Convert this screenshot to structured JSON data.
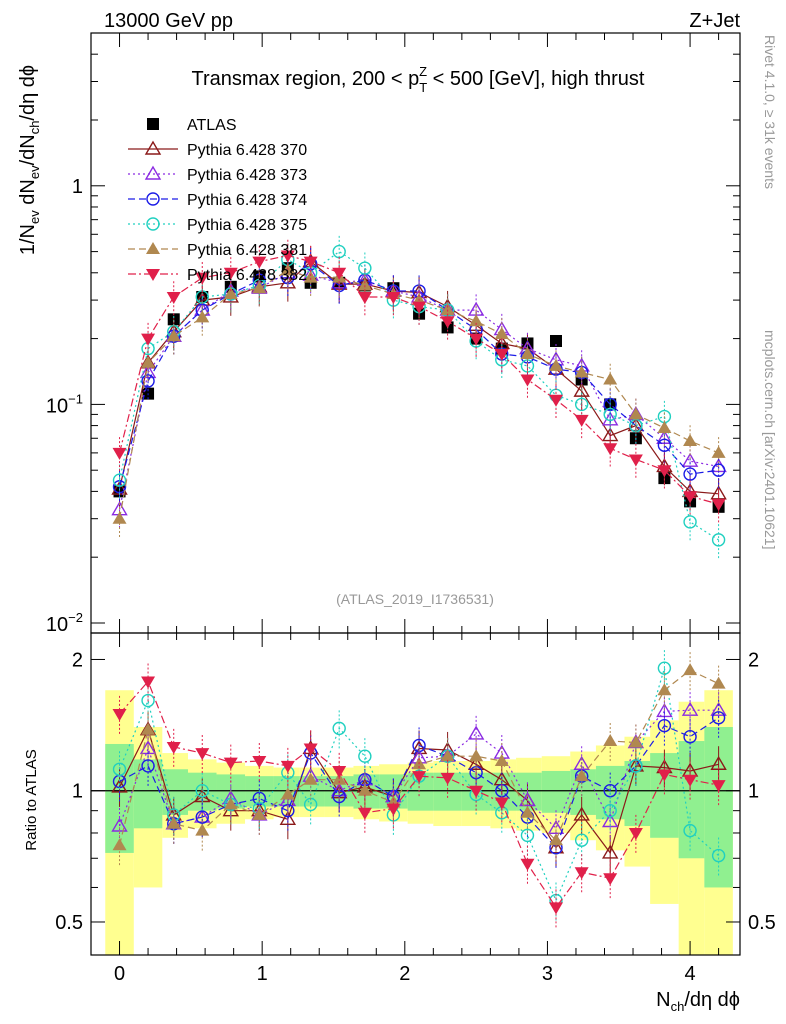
{
  "header": {
    "energy": "13000 GeV pp",
    "process": "Z+Jet"
  },
  "side_labels": {
    "rivet": "Rivet 4.1.0, ≥ 31k events",
    "mcplots": "mcplots.cern.ch [arXiv:2401.10621]"
  },
  "colors": {
    "ATLAS": "#000000",
    "Pythia 6.428 370": "#8b1a1a",
    "Pythia 6.428 373": "#8b2be2",
    "Pythia 6.428 374": "#1c1ce6",
    "Pythia 6.428 375": "#20d0c0",
    "Pythia 6.428 381": "#b08850",
    "Pythia 6.428 382": "#e0204a",
    "band_inner": "#90f090",
    "band_outer": "#ffff90"
  },
  "chart_data": [
    {
      "type": "scatter",
      "title": "Transmax region, 200 < p_T^Z < 500 [GeV], high thrust",
      "title_parts": {
        "pre": "Transmax region, 200 < p",
        "sub": "T",
        "sup": "Z",
        "post": " < 500 [GeV], high thrust"
      },
      "ylabel": "1/N_ev dN_ev/dN_ch/dη dϕ",
      "xlabel": "N_ch/dη dϕ",
      "yscale": "log",
      "ylim": [
        0.009,
        5
      ],
      "xlim": [
        -0.2,
        4.35
      ],
      "y_ticks": [
        "10⁻²",
        "10⁻¹",
        "1"
      ],
      "watermark": "(ATLAS_2019_I1736531)",
      "x": [
        0.0,
        0.2,
        0.38,
        0.58,
        0.78,
        0.98,
        1.18,
        1.34,
        1.54,
        1.72,
        1.92,
        2.1,
        2.3,
        2.5,
        2.68,
        2.86,
        3.06,
        3.24,
        3.44,
        3.62,
        3.82,
        4.0,
        4.2
      ],
      "series": [
        {
          "name": "ATLAS",
          "marker": "square",
          "line": "none",
          "values": [
            0.04,
            0.112,
            0.245,
            0.31,
            0.345,
            0.385,
            0.42,
            0.36,
            0.36,
            0.35,
            0.34,
            0.26,
            0.225,
            0.2,
            0.18,
            0.19,
            0.195,
            0.13,
            0.1,
            0.07,
            0.046,
            0.036,
            0.034
          ]
        },
        {
          "name": "Pythia 6.428 370",
          "marker": "triangle-up-open",
          "line": "solid",
          "values": [
            0.041,
            0.155,
            0.215,
            0.3,
            0.31,
            0.345,
            0.36,
            0.45,
            0.355,
            0.355,
            0.33,
            0.325,
            0.28,
            0.23,
            0.19,
            0.18,
            0.145,
            0.115,
            0.072,
            0.08,
            0.052,
            0.04,
            0.039
          ]
        },
        {
          "name": "Pythia 6.428 373",
          "marker": "triangle-up-open",
          "line": "dotted",
          "values": [
            0.033,
            0.14,
            0.205,
            0.27,
            0.33,
            0.34,
            0.4,
            0.39,
            0.36,
            0.37,
            0.33,
            0.31,
            0.27,
            0.27,
            0.22,
            0.18,
            0.16,
            0.15,
            0.085,
            0.09,
            0.07,
            0.055,
            0.052
          ]
        },
        {
          "name": "Pythia 6.428 374",
          "marker": "circle-open",
          "line": "dashed",
          "values": [
            0.042,
            0.128,
            0.205,
            0.27,
            0.32,
            0.37,
            0.38,
            0.44,
            0.35,
            0.37,
            0.33,
            0.33,
            0.27,
            0.22,
            0.17,
            0.165,
            0.145,
            0.14,
            0.1,
            0.08,
            0.065,
            0.048,
            0.05
          ]
        },
        {
          "name": "Pythia 6.428 375",
          "marker": "circle-open",
          "line": "dotted",
          "values": [
            0.045,
            0.18,
            0.215,
            0.31,
            0.32,
            0.35,
            0.46,
            0.4,
            0.5,
            0.42,
            0.3,
            0.28,
            0.27,
            0.195,
            0.16,
            0.15,
            0.11,
            0.1,
            0.09,
            0.08,
            0.088,
            0.029,
            0.024
          ]
        },
        {
          "name": "Pythia 6.428 381",
          "marker": "triangle-up-filled",
          "line": "dashed",
          "values": [
            0.03,
            0.155,
            0.205,
            0.25,
            0.32,
            0.34,
            0.41,
            0.38,
            0.38,
            0.35,
            0.32,
            0.3,
            0.27,
            0.24,
            0.21,
            0.17,
            0.15,
            0.14,
            0.13,
            0.09,
            0.078,
            0.068,
            0.06
          ]
        },
        {
          "name": "Pythia 6.428 382",
          "marker": "triangle-down-filled",
          "line": "dashdot",
          "values": [
            0.06,
            0.2,
            0.31,
            0.38,
            0.4,
            0.45,
            0.48,
            0.45,
            0.4,
            0.31,
            0.31,
            0.28,
            0.24,
            0.2,
            0.17,
            0.13,
            0.105,
            0.085,
            0.063,
            0.056,
            0.05,
            0.038,
            0.035
          ]
        }
      ]
    },
    {
      "type": "scatter",
      "title": "",
      "ylabel": "Ratio to ATLAS",
      "xlabel": "N_ch/dη dϕ",
      "ylim": [
        0.42,
        2.3
      ],
      "yscale": "log",
      "xlim": [
        -0.2,
        4.35
      ],
      "y_ticks": [
        "0.5",
        "1",
        "2"
      ],
      "x_ticks": [
        "0",
        "1",
        "2",
        "3",
        "4"
      ],
      "bands": {
        "x_edges": [
          -0.1,
          0.1,
          0.3,
          0.48,
          0.68,
          0.88,
          1.08,
          1.26,
          1.44,
          1.64,
          1.82,
          2.02,
          2.2,
          2.4,
          2.6,
          2.78,
          2.96,
          3.16,
          3.34,
          3.54,
          3.72,
          3.92,
          4.1,
          4.3
        ],
        "inner": [
          0.28,
          0.18,
          0.12,
          0.1,
          0.09,
          0.08,
          0.08,
          0.08,
          0.08,
          0.09,
          0.09,
          0.1,
          0.1,
          0.1,
          0.1,
          0.1,
          0.11,
          0.12,
          0.14,
          0.17,
          0.22,
          0.3,
          0.4
        ],
        "outer": [
          0.7,
          0.4,
          0.22,
          0.18,
          0.16,
          0.14,
          0.13,
          0.13,
          0.13,
          0.14,
          0.15,
          0.16,
          0.17,
          0.17,
          0.18,
          0.19,
          0.2,
          0.23,
          0.27,
          0.33,
          0.45,
          0.6,
          0.7
        ]
      },
      "series": [
        {
          "name": "Pythia 6.428 370",
          "values": [
            1.02,
            1.38,
            0.88,
            0.97,
            0.9,
            0.9,
            0.86,
            1.25,
            0.99,
            1.02,
            0.97,
            1.25,
            1.24,
            1.15,
            1.06,
            0.95,
            0.74,
            0.88,
            0.72,
            1.14,
            1.13,
            1.11,
            1.15
          ]
        },
        {
          "name": "Pythia 6.428 373",
          "values": [
            0.83,
            1.25,
            0.84,
            0.87,
            0.96,
            0.88,
            0.95,
            1.08,
            1.0,
            1.06,
            0.97,
            1.19,
            1.2,
            1.35,
            1.22,
            0.95,
            0.82,
            1.15,
            0.85,
            1.29,
            1.52,
            1.53,
            1.53
          ]
        },
        {
          "name": "Pythia 6.428 374",
          "values": [
            1.05,
            1.14,
            0.84,
            0.87,
            0.93,
            0.96,
            0.9,
            1.22,
            0.97,
            1.06,
            0.97,
            1.27,
            1.2,
            1.1,
            1.0,
            0.87,
            0.74,
            1.08,
            1.0,
            1.14,
            1.41,
            1.33,
            1.47
          ]
        },
        {
          "name": "Pythia 6.428 375",
          "values": [
            1.12,
            1.61,
            0.88,
            1.0,
            0.93,
            0.91,
            1.1,
            0.93,
            1.39,
            1.2,
            0.88,
            1.08,
            1.2,
            0.98,
            0.89,
            0.79,
            0.56,
            0.77,
            0.9,
            1.14,
            1.91,
            0.81,
            0.71
          ]
        },
        {
          "name": "Pythia 6.428 381",
          "values": [
            0.75,
            1.38,
            0.84,
            0.81,
            0.93,
            0.88,
            0.98,
            1.06,
            1.06,
            1.0,
            0.94,
            1.15,
            1.2,
            1.2,
            1.17,
            0.89,
            0.77,
            1.08,
            1.3,
            1.29,
            1.7,
            1.89,
            1.76
          ]
        },
        {
          "name": "Pythia 6.428 382",
          "values": [
            1.5,
            1.78,
            1.26,
            1.22,
            1.16,
            1.17,
            1.14,
            1.25,
            1.11,
            0.89,
            0.91,
            1.08,
            1.07,
            1.0,
            0.94,
            0.68,
            0.54,
            0.65,
            0.63,
            0.8,
            1.09,
            1.06,
            1.03
          ]
        }
      ]
    }
  ]
}
